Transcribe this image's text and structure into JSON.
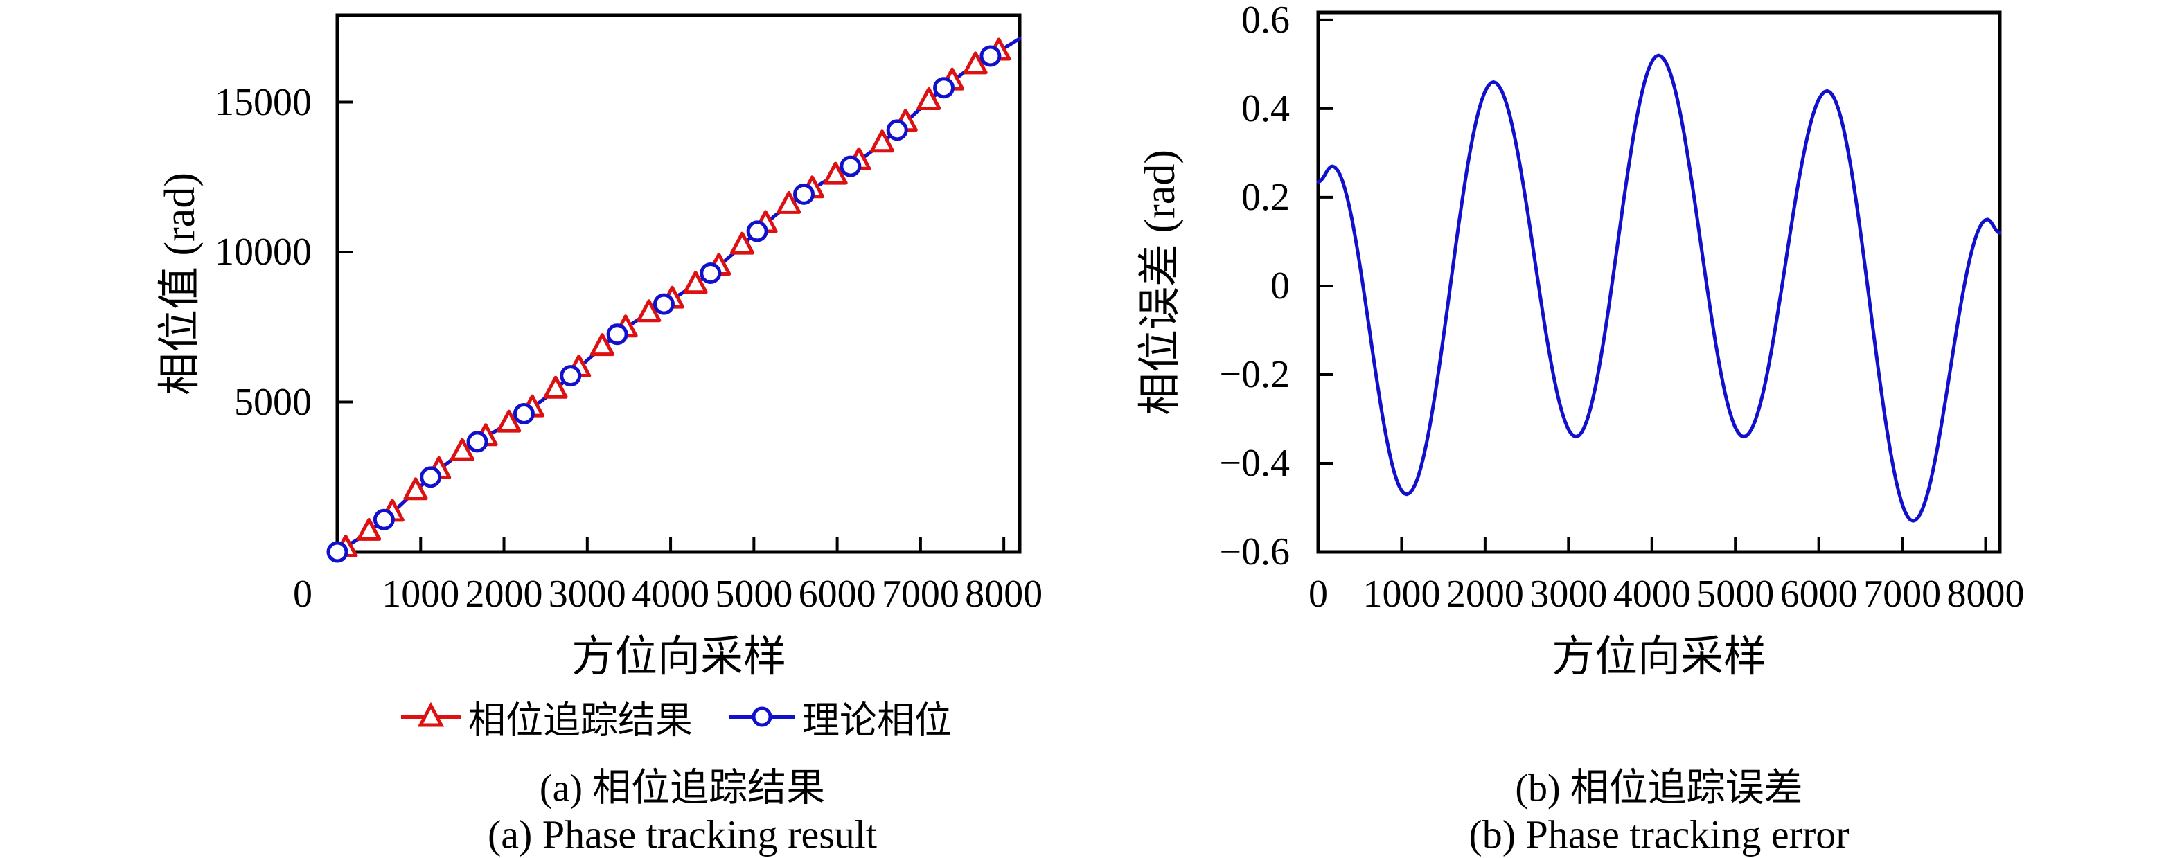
{
  "page": {
    "background": "#ffffff",
    "text_color": "#000000",
    "axis_color": "#000000"
  },
  "colors": {
    "tracking_red": "#dd1111",
    "theory_blue": "#1111cd",
    "error_blue": "#1111cd"
  },
  "chart_data": [
    {
      "id": "phase-tracking-result",
      "type": "line",
      "title": "",
      "xlabel": "方位向采样",
      "ylabel": "相位值 (rad)",
      "caption_cn": "(a) 相位追踪结果",
      "caption_en": "(a) Phase tracking result",
      "xlim": [
        0,
        8190
      ],
      "ylim": [
        0,
        17900
      ],
      "grid": false,
      "legend_position": "below",
      "xticks": {
        "values": [
          0,
          1000,
          2000,
          3000,
          4000,
          5000,
          6000,
          7000,
          8000
        ],
        "labels": [
          "0",
          "1000",
          "2000",
          "3000",
          "4000",
          "5000",
          "6000",
          "7000",
          "8000"
        ]
      },
      "yticks": {
        "values": [
          5000,
          10000,
          15000
        ],
        "labels": [
          "5000",
          "10000",
          "15000"
        ]
      },
      "series": [
        {
          "name": "相位追踪结果",
          "color": "#dd1111",
          "marker": "triangle-open",
          "line": true,
          "line_overlaps": "理论相位",
          "marker_points": [
            [
              100,
              128
            ],
            [
              380,
              683
            ],
            [
              660,
              1319
            ],
            [
              940,
              2038
            ],
            [
              1220,
              2741
            ],
            [
              1500,
              3346
            ],
            [
              1780,
              3841
            ],
            [
              2060,
              4293
            ],
            [
              2340,
              4801
            ],
            [
              2620,
              5423
            ],
            [
              2900,
              6134
            ],
            [
              3180,
              6845
            ],
            [
              3460,
              7467
            ],
            [
              3740,
              7975
            ],
            [
              4020,
              8427
            ],
            [
              4300,
              8922
            ],
            [
              4580,
              9527
            ],
            [
              4860,
              10230
            ],
            [
              5140,
              10948
            ],
            [
              5420,
              11586
            ],
            [
              5700,
              12108
            ],
            [
              5980,
              12562
            ],
            [
              6260,
              13045
            ],
            [
              6540,
              13633
            ],
            [
              6820,
              14326
            ],
            [
              7100,
              15048
            ],
            [
              7380,
              15702
            ],
            [
              7660,
              16240
            ],
            [
              7940,
              16698
            ]
          ]
        },
        {
          "name": "理论相位",
          "color": "#1111cd",
          "marker": "circle-open",
          "line": true,
          "line_points": [
            [
              0,
              0
            ],
            [
              250,
              428
            ],
            [
              500,
              941
            ],
            [
              750,
              1544
            ],
            [
              1000,
              2193
            ],
            [
              1250,
              2812
            ],
            [
              1500,
              3346
            ],
            [
              1750,
              3792
            ],
            [
              2000,
              4195
            ],
            [
              2250,
              4626
            ],
            [
              2500,
              5142
            ],
            [
              2750,
              5746
            ],
            [
              3000,
              6393
            ],
            [
              3250,
              7012
            ],
            [
              3500,
              7546
            ],
            [
              3750,
              7992
            ],
            [
              4000,
              8395
            ],
            [
              4250,
              8826
            ],
            [
              4500,
              9342
            ],
            [
              4750,
              9946
            ],
            [
              5000,
              10593
            ],
            [
              5250,
              11212
            ],
            [
              5500,
              11746
            ],
            [
              5750,
              12192
            ],
            [
              6000,
              12595
            ],
            [
              6250,
              13026
            ],
            [
              6500,
              13542
            ],
            [
              6750,
              14146
            ],
            [
              7000,
              14793
            ],
            [
              7250,
              15412
            ],
            [
              7500,
              15946
            ],
            [
              7750,
              16392
            ],
            [
              8000,
              16795
            ],
            [
              8190,
              17116
            ]
          ],
          "marker_points": [
            [
              0,
              0
            ],
            [
              560,
              1080
            ],
            [
              1120,
              2498
            ],
            [
              1680,
              3674
            ],
            [
              2240,
              4608
            ],
            [
              2800,
              5875
            ],
            [
              3360,
              7259
            ],
            [
              3920,
              8266
            ],
            [
              4480,
              9297
            ],
            [
              5040,
              10696
            ],
            [
              5600,
              11933
            ],
            [
              6160,
              12863
            ],
            [
              6720,
              14070
            ],
            [
              7280,
              15481
            ],
            [
              7840,
              16538
            ]
          ]
        }
      ]
    },
    {
      "id": "phase-tracking-error",
      "type": "line",
      "title": "",
      "xlabel": "方位向采样",
      "ylabel": "相位误差 (rad)",
      "caption_cn": "(b) 相位追踪误差",
      "caption_en": "(b) Phase tracking error",
      "xlim": [
        0,
        8170
      ],
      "ylim": [
        -0.6,
        0.617
      ],
      "grid": false,
      "legend_position": "none",
      "xticks": {
        "values": [
          0,
          1000,
          2000,
          3000,
          4000,
          5000,
          6000,
          7000,
          8000
        ],
        "labels": [
          "0",
          "1000",
          "2000",
          "3000",
          "4000",
          "5000",
          "6000",
          "7000",
          "8000"
        ]
      },
      "yticks": {
        "values": [
          -0.6,
          -0.4,
          -0.2,
          0,
          0.2,
          0.4,
          0.6
        ],
        "labels": [
          "−0.6",
          "−0.4",
          "−0.2",
          "0",
          "0.2",
          "0.4",
          "0.6"
        ]
      },
      "series": [
        {
          "name": "相位误差",
          "color": "#1111cd",
          "marker": null,
          "line": true,
          "interpolation": "cosine-between-extrema",
          "anchor_points": [
            [
              0,
              0.235
            ],
            [
              170,
              0.27
            ],
            [
              1060,
              -0.47
            ],
            [
              2100,
              0.46
            ],
            [
              3090,
              -0.34
            ],
            [
              4080,
              0.52
            ],
            [
              5100,
              -0.34
            ],
            [
              6100,
              0.44
            ],
            [
              7130,
              -0.53
            ],
            [
              8020,
              0.15
            ],
            [
              8170,
              0.12
            ]
          ]
        }
      ]
    }
  ]
}
